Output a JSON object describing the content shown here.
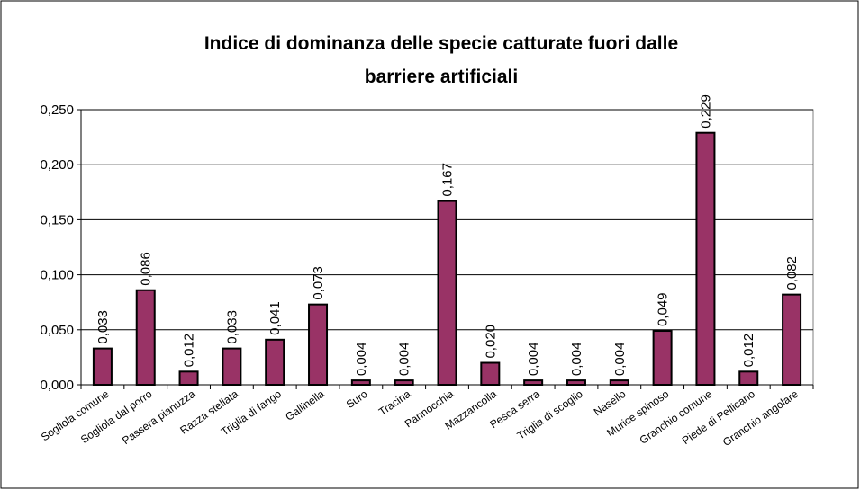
{
  "chart_data": {
    "type": "bar",
    "title": [
      "Indice di dominanza delle specie catturate fuori dalle",
      "barriere artificiali"
    ],
    "categories": [
      "Sogliola comune",
      "Sogliola dal porro",
      "Passera pianuzza",
      "Razza stellata",
      "Triglia di fango",
      "Gallinella",
      "Suro",
      "Tracina",
      "Pannocchia",
      "Mazzancolla",
      "Pesca serra",
      "Triglia di scoglio",
      "Nasello",
      "Murice spinoso",
      "Granchio comune",
      "Piede di Pellicano",
      "Granchio angolare"
    ],
    "values": [
      0.033,
      0.086,
      0.012,
      0.033,
      0.041,
      0.073,
      0.004,
      0.004,
      0.167,
      0.02,
      0.004,
      0.004,
      0.004,
      0.049,
      0.229,
      0.012,
      0.082
    ],
    "value_labels": [
      "0,033",
      "0,086",
      "0,012",
      "0,033",
      "0,041",
      "0,073",
      "0,004",
      "0,004",
      "0,167",
      "0,020",
      "0,004",
      "0,004",
      "0,004",
      "0,049",
      "0,229",
      "0,012",
      "0,082"
    ],
    "color": "#993366",
    "ylim": [
      0,
      0.25
    ],
    "yticks": [
      {
        "value": 0,
        "label": "0,000"
      },
      {
        "value": 0.05,
        "label": "0,050"
      },
      {
        "value": 0.1,
        "label": "0,100"
      },
      {
        "value": 0.15,
        "label": "0,150"
      },
      {
        "value": 0.2,
        "label": "0,200"
      },
      {
        "value": 0.25,
        "label": "0,250"
      }
    ],
    "grid": true
  }
}
